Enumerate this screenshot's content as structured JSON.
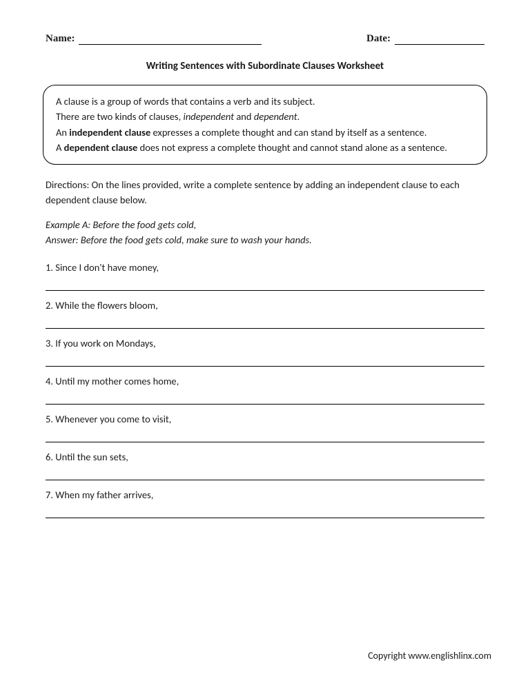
{
  "header": {
    "name_label": "Name:",
    "date_label": "Date:"
  },
  "title": "Writing Sentences with Subordinate Clauses Worksheet",
  "info_box": {
    "line1": "A clause is a group of words that contains a verb and its subject.",
    "line2_a": "There are two kinds of clauses, ",
    "line2_em1": "independent",
    "line2_b": " and ",
    "line2_em2": "dependent",
    "line2_c": ".",
    "line3_a": "An ",
    "line3_bold": "independent clause",
    "line3_b": " expresses a complete thought and can stand by itself as a sentence.",
    "line4_a": "A ",
    "line4_bold": "dependent clause",
    "line4_b": " does not express a complete thought and cannot stand alone as a sentence."
  },
  "directions": "Directions: On the lines provided, write a complete sentence by adding an independent clause to each dependent clause below.",
  "example": {
    "line1": "Example A: Before the food gets cold,",
    "line2": "Answer: Before the food gets cold, make sure to wash your hands."
  },
  "questions": [
    "1. Since I don't have money,",
    "2. While the flowers bloom,",
    "3. If you work on Mondays,",
    "4. Until my mother comes home,",
    "5. Whenever you come to visit,",
    "6. Until the sun sets,",
    "7. When my father arrives,"
  ],
  "copyright": "Copyright www.englishlinx.com"
}
